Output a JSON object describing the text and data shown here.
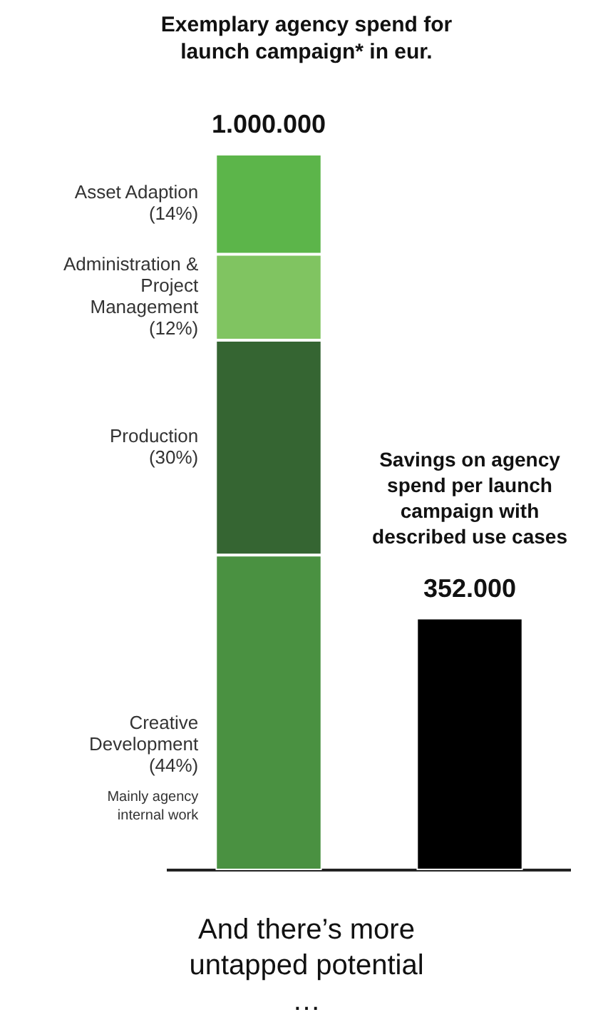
{
  "chart_data": {
    "type": "bar",
    "title": "Exemplary agency spend for launch campaign* in eur.",
    "categories": [
      null,
      null
    ],
    "stacked": true,
    "legend": false,
    "grid": false,
    "series": [
      {
        "name": "Creative Development (44%)",
        "color": "#4a9141",
        "values": [
          440000,
          null
        ]
      },
      {
        "name": "Production (30%)",
        "color": "#356532",
        "values": [
          300000,
          null
        ]
      },
      {
        "name": "Administration & Project Management (12%)",
        "color": "#80c461",
        "values": [
          120000,
          null
        ]
      },
      {
        "name": "Asset Adaption (14%)",
        "color": "#5cb54a",
        "values": [
          140000,
          null
        ]
      },
      {
        "name": "Savings on agency spend per launch campaign with described use cases",
        "color": "#000000",
        "values": [
          null,
          352000
        ],
        "value_labels": [
          null,
          "352.000"
        ]
      }
    ],
    "totals": [
      "1.000.000",
      null
    ],
    "annotations": [
      "Mainly agency internal work",
      "And there’s more untapped potential …"
    ]
  }
}
